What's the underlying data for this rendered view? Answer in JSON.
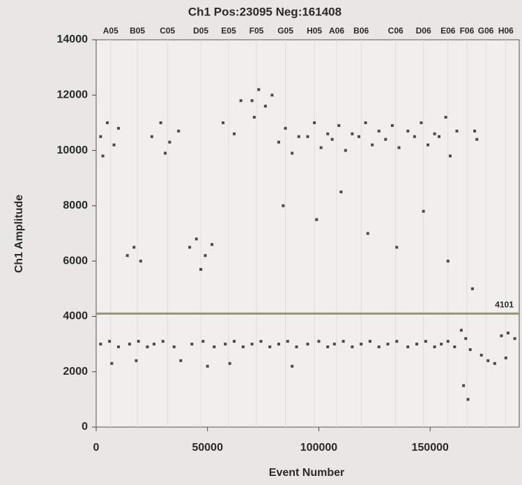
{
  "chart_data": {
    "type": "scatter",
    "title": "Ch1 Pos:23095 Neg:161408",
    "x_label": "Event Number",
    "y_label": "Ch1 Amplitude",
    "color": "#4a4a4a",
    "threshold": 4101,
    "threshold_color": "#9a907e",
    "xlim": [
      0,
      190000
    ],
    "ylim": [
      0,
      14000
    ],
    "xticks": [
      0,
      50000,
      100000,
      150000
    ],
    "yticks": [
      0,
      2000,
      4000,
      6000,
      8000,
      10000,
      12000,
      14000
    ],
    "x2ticks": [
      {
        "value": 6500,
        "label": "A05"
      },
      {
        "value": 18500,
        "label": "B05"
      },
      {
        "value": 32000,
        "label": "C05"
      },
      {
        "value": 47000,
        "label": "D05"
      },
      {
        "value": 59500,
        "label": "E05"
      },
      {
        "value": 72000,
        "label": "F05"
      },
      {
        "value": 85000,
        "label": "G05"
      },
      {
        "value": 98000,
        "label": "H05"
      },
      {
        "value": 108000,
        "label": "A06"
      },
      {
        "value": 119000,
        "label": "B06"
      },
      {
        "value": 134500,
        "label": "C06"
      },
      {
        "value": 147000,
        "label": "D06"
      },
      {
        "value": 158000,
        "label": "E06"
      },
      {
        "value": 166500,
        "label": "F06"
      },
      {
        "value": 175000,
        "label": "G06"
      },
      {
        "value": 184000,
        "label": "H06"
      }
    ],
    "x": [
      2000,
      5000,
      8000,
      10000,
      3000,
      2000,
      6000,
      10000,
      7000,
      14000,
      17000,
      20000,
      15000,
      19000,
      23000,
      18000,
      25000,
      29000,
      33000,
      37000,
      31000,
      26000,
      30000,
      35000,
      38000,
      42000,
      45000,
      49000,
      52000,
      47000,
      43000,
      48000,
      53000,
      50000,
      57000,
      62000,
      65000,
      58000,
      62000,
      66000,
      60000,
      70000,
      73000,
      76000,
      79000,
      71000,
      70000,
      74000,
      78000,
      82000,
      85000,
      88000,
      91000,
      84000,
      82000,
      86000,
      90000,
      88000,
      95000,
      98000,
      101000,
      104000,
      99000,
      95000,
      100000,
      104000,
      106000,
      109000,
      112000,
      115000,
      110000,
      107000,
      111000,
      115000,
      118000,
      121000,
      124000,
      127000,
      122000,
      119000,
      123000,
      127000,
      130000,
      133000,
      136000,
      140000,
      135000,
      131000,
      135000,
      140000,
      143000,
      146000,
      149000,
      152000,
      147000,
      144000,
      148000,
      152000,
      154000,
      157000,
      159000,
      162000,
      158000,
      155000,
      158000,
      161000,
      164000,
      166000,
      168000,
      165000,
      167000,
      170000,
      171000,
      169000,
      173000,
      176000,
      179000,
      182000,
      185000,
      188000,
      184000
    ],
    "y": [
      10500,
      11000,
      10200,
      10800,
      9800,
      3000,
      3100,
      2900,
      2300,
      6200,
      6500,
      6000,
      3000,
      3100,
      2900,
      2400,
      10500,
      11000,
      10300,
      10700,
      9900,
      3000,
      3100,
      2900,
      2400,
      6500,
      6800,
      6200,
      6600,
      5700,
      3000,
      3100,
      2900,
      2200,
      11000,
      10600,
      11800,
      3000,
      3100,
      2900,
      2300,
      11800,
      12200,
      11600,
      12000,
      11200,
      3000,
      3100,
      2900,
      10300,
      10800,
      9900,
      10500,
      8000,
      3000,
      3100,
      2900,
      2200,
      10500,
      11000,
      10100,
      10600,
      7500,
      3000,
      3100,
      2900,
      10400,
      10900,
      10000,
      10600,
      8500,
      3000,
      3100,
      2900,
      10500,
      11000,
      10200,
      10700,
      7000,
      3000,
      3100,
      2900,
      10400,
      10900,
      10100,
      10700,
      6500,
      3000,
      3100,
      2900,
      10500,
      11000,
      10200,
      10600,
      7800,
      3000,
      3100,
      2900,
      10500,
      11200,
      9800,
      10700,
      6000,
      3000,
      3100,
      2900,
      3500,
      3200,
      2800,
      1500,
      1000,
      10700,
      10400,
      5000,
      2600,
      2400,
      2300,
      3300,
      3400,
      3200,
      2500
    ]
  }
}
